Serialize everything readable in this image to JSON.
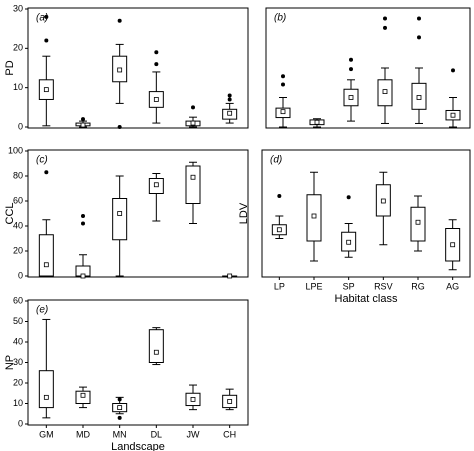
{
  "chart_data": [
    {
      "type": "box",
      "label": "(a)",
      "ylabel": "PD",
      "ylim": [
        0,
        30
      ],
      "yticks": [
        0,
        10,
        20,
        30
      ],
      "boxes": [
        {
          "min": 0.3,
          "q1": 7,
          "median": 9.5,
          "q3": 12,
          "max": 18,
          "outliers": [
            28,
            22
          ]
        },
        {
          "min": 0,
          "q1": 0.3,
          "median": 0.5,
          "q3": 1,
          "max": 1.5,
          "outliers": [
            2
          ]
        },
        {
          "min": 6,
          "q1": 11.5,
          "median": 14.5,
          "q3": 18,
          "max": 21,
          "outliers": [
            27,
            0
          ]
        },
        {
          "min": 1,
          "q1": 5,
          "median": 7,
          "q3": 9,
          "max": 14,
          "outliers": [
            19,
            16
          ]
        },
        {
          "min": 0,
          "q1": 0.3,
          "median": 1,
          "q3": 1.5,
          "max": 2.5,
          "outliers": [
            5
          ]
        },
        {
          "min": 1,
          "q1": 2,
          "median": 3.5,
          "q3": 4.5,
          "max": 6,
          "outliers": [
            8,
            7
          ]
        }
      ]
    },
    {
      "type": "box",
      "label": "(b)",
      "ylim": [
        0,
        100
      ],
      "boxes": [
        {
          "min": 0,
          "q1": 8,
          "median": 13,
          "q3": 16,
          "max": 25,
          "outliers": [
            36,
            43
          ]
        },
        {
          "min": 0,
          "q1": 2,
          "median": 4,
          "q3": 6,
          "max": 7,
          "outliers": []
        },
        {
          "min": 5,
          "q1": 18,
          "median": 25,
          "q3": 32,
          "max": 40,
          "outliers": [
            49,
            57
          ]
        },
        {
          "min": 3,
          "q1": 18,
          "median": 30,
          "q3": 40,
          "max": 50,
          "outliers": [
            92,
            84
          ]
        },
        {
          "min": 3,
          "q1": 15,
          "median": 25,
          "q3": 37,
          "max": 50,
          "outliers": [
            92,
            76
          ]
        },
        {
          "min": 0,
          "q1": 6,
          "median": 10,
          "q3": 14,
          "max": 25,
          "outliers": [
            48
          ]
        }
      ]
    },
    {
      "type": "box",
      "label": "(c)",
      "ylabel": "CCL",
      "ylim": [
        0,
        100
      ],
      "yticks": [
        0,
        20,
        40,
        60,
        80,
        100
      ],
      "boxes": [
        {
          "min": 0,
          "q1": 0,
          "median": 9,
          "q3": 33,
          "max": 45,
          "outliers": [
            83
          ]
        },
        {
          "min": 0,
          "q1": 0,
          "median": 0,
          "q3": 8,
          "max": 17,
          "outliers": [
            48,
            42
          ]
        },
        {
          "min": 0,
          "q1": 29,
          "median": 50,
          "q3": 62,
          "max": 80,
          "outliers": []
        },
        {
          "min": 44,
          "q1": 66,
          "median": 73,
          "q3": 78,
          "max": 82,
          "outliers": []
        },
        {
          "min": 42,
          "q1": 58,
          "median": 79,
          "q3": 88,
          "max": 91,
          "outliers": []
        },
        {
          "min": 0,
          "q1": 0,
          "median": 0,
          "q3": 0,
          "max": 0,
          "outliers": []
        }
      ]
    },
    {
      "type": "box",
      "label": "(d)",
      "ylabel": "LDV",
      "xlabel": "Habitat class",
      "ylim": [
        0,
        100
      ],
      "categories": [
        "LP",
        "LPE",
        "SP",
        "RSV",
        "RG",
        "AG"
      ],
      "boxes": [
        {
          "min": 30,
          "q1": 33,
          "median": 37,
          "q3": 41,
          "max": 48,
          "outliers": [
            64
          ]
        },
        {
          "min": 12,
          "q1": 28,
          "median": 48,
          "q3": 65,
          "max": 83,
          "outliers": []
        },
        {
          "min": 15,
          "q1": 20,
          "median": 27,
          "q3": 35,
          "max": 42,
          "outliers": [
            63
          ]
        },
        {
          "min": 25,
          "q1": 48,
          "median": 60,
          "q3": 73,
          "max": 83,
          "outliers": []
        },
        {
          "min": 20,
          "q1": 28,
          "median": 43,
          "q3": 55,
          "max": 64,
          "outliers": []
        },
        {
          "min": 5,
          "q1": 12,
          "median": 25,
          "q3": 38,
          "max": 45,
          "outliers": []
        }
      ]
    },
    {
      "type": "box",
      "label": "(e)",
      "ylabel": "NP",
      "xlabel": "Landscape",
      "ylim": [
        0,
        60
      ],
      "yticks": [
        0,
        10,
        20,
        30,
        40,
        50,
        60
      ],
      "categories": [
        "GM",
        "MD",
        "MN",
        "DL",
        "JW",
        "CH"
      ],
      "boxes": [
        {
          "min": 3,
          "q1": 8,
          "median": 13,
          "q3": 26,
          "max": 51,
          "outliers": []
        },
        {
          "min": 8,
          "q1": 10,
          "median": 14,
          "q3": 16,
          "max": 18,
          "outliers": []
        },
        {
          "min": 5,
          "q1": 6,
          "median": 8,
          "q3": 10,
          "max": 13,
          "outliers": [
            3,
            12
          ]
        },
        {
          "min": 29,
          "q1": 30,
          "median": 35,
          "q3": 46,
          "max": 47,
          "outliers": []
        },
        {
          "min": 7,
          "q1": 9,
          "median": 12,
          "q3": 15,
          "max": 19,
          "outliers": []
        },
        {
          "min": 7,
          "q1": 8,
          "median": 11,
          "q3": 14,
          "max": 17,
          "outliers": []
        }
      ]
    }
  ]
}
